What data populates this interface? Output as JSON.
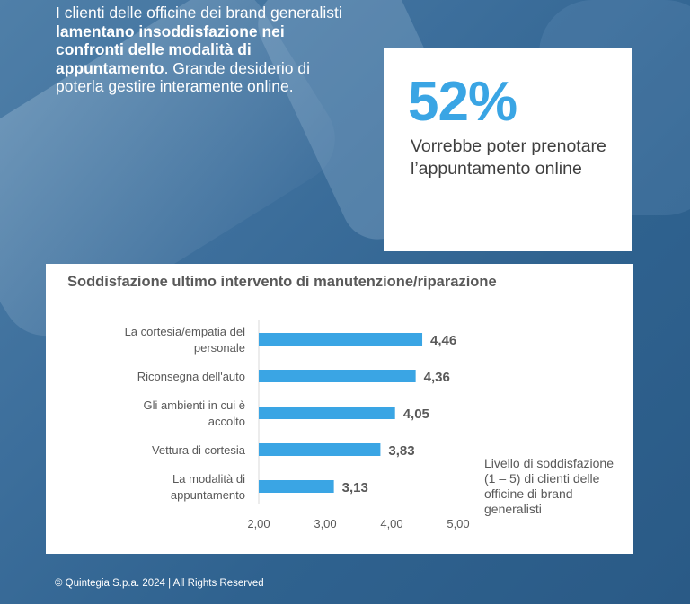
{
  "headline": {
    "part1": "I clienti delle officine dei brand generalisti ",
    "bold": "lamentano insoddisfazione nei confronti delle modalità di appuntamento",
    "part2": ". Grande desiderio di poterla gestire interamente online."
  },
  "stat": {
    "value": "52%",
    "description": "Vorrebbe poter prenotare l’appuntamento online"
  },
  "chart_data": {
    "type": "bar",
    "orientation": "horizontal",
    "title": "Soddisfazione ultimo intervento di manutenzione/riparazione",
    "categories": [
      "La cortesia/empatia del personale",
      "Riconsegna dell'auto",
      "Gli ambienti in cui è accolto",
      "Vettura di cortesia",
      "La modalità di appuntamento"
    ],
    "values": [
      4.46,
      4.36,
      4.05,
      3.83,
      3.13
    ],
    "value_labels": [
      "4,46",
      "4,36",
      "4,05",
      "3,83",
      "3,13"
    ],
    "xlim": [
      2.0,
      5.0
    ],
    "x_ticks": [
      2.0,
      3.0,
      4.0,
      5.0
    ],
    "x_tick_labels": [
      "2,00",
      "3,00",
      "4,00",
      "5,00"
    ],
    "grid": false,
    "bar_color": "#3aa5e4"
  },
  "side_note": "Livello di soddisfazione (1 – 5) di clienti delle officine di brand generalisti",
  "footer": "© Quintegia S.p.a. 2024 | All Rights Reserved"
}
